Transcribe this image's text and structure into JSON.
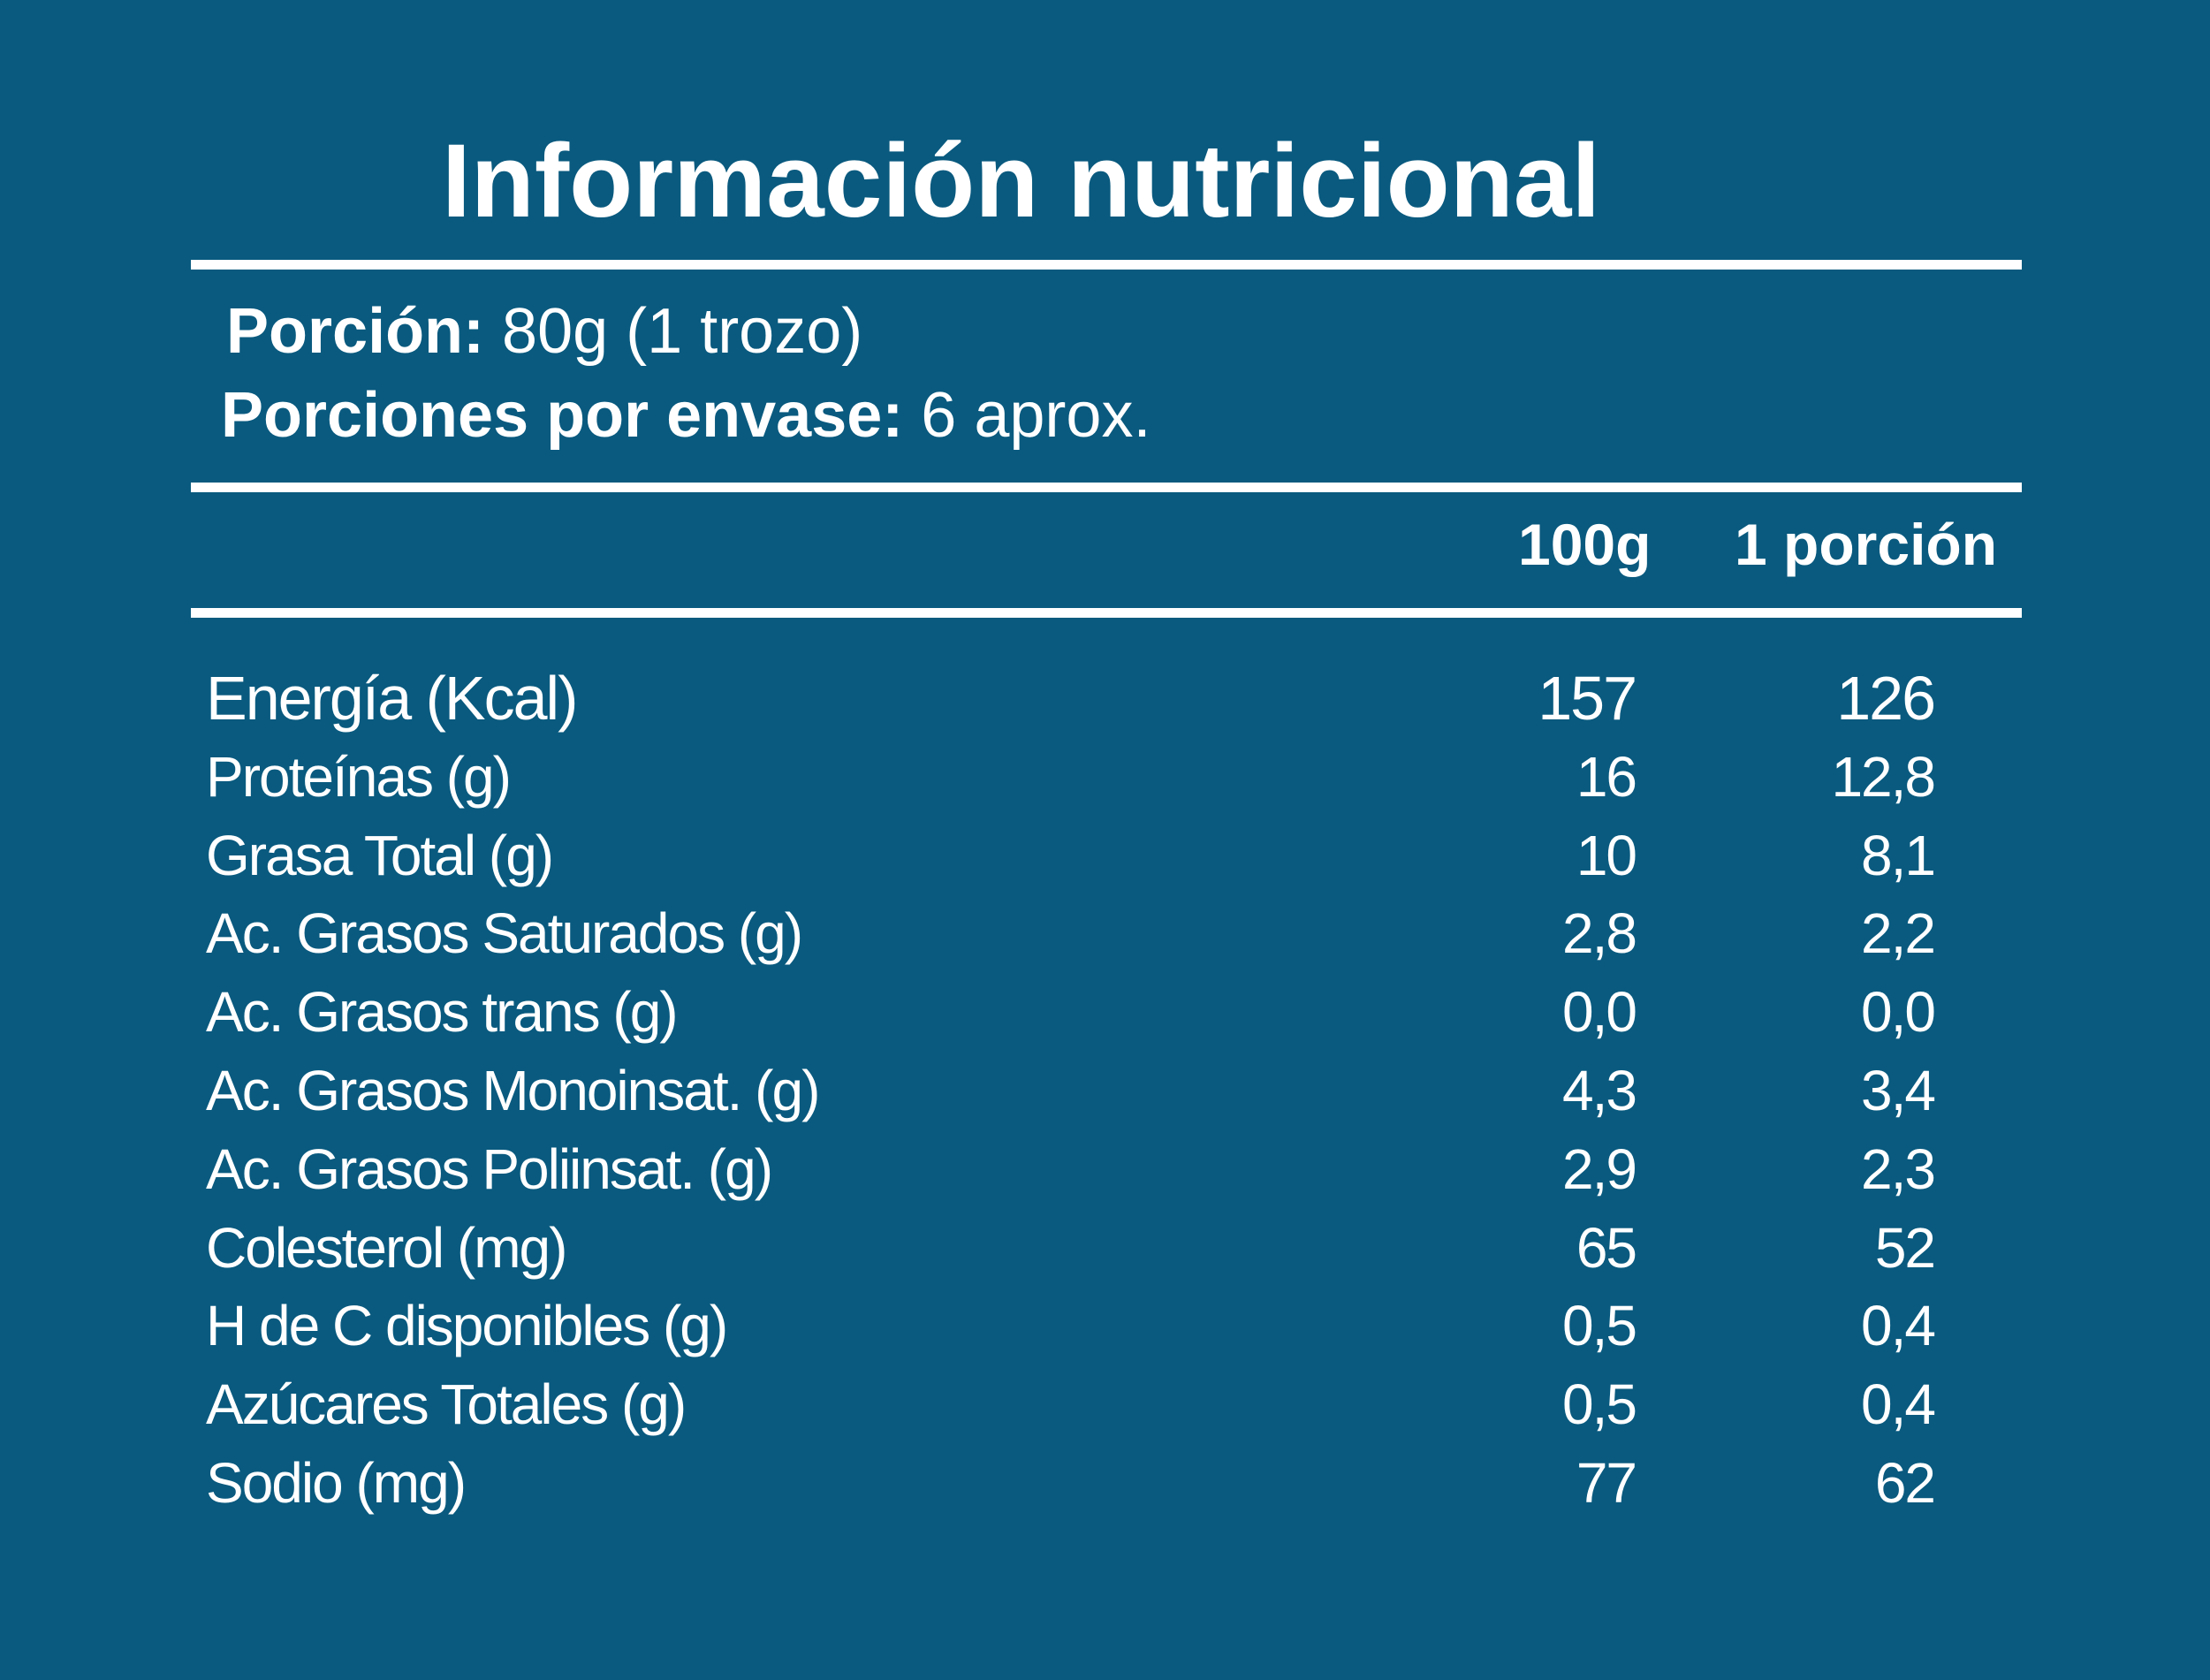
{
  "title": "Información nutricional",
  "serving": {
    "portion_label": "Porción:",
    "portion_value": "80g (1 trozo)",
    "per_package_label": "Porciones por envase:",
    "per_package_value": "6 aprox."
  },
  "columns": {
    "per_100g": "100g",
    "per_portion": "1 porción"
  },
  "nutrients": [
    {
      "name": "Energía (Kcal)",
      "per_100g": "157",
      "per_portion": "126"
    },
    {
      "name": "Proteínas (g)",
      "per_100g": "16",
      "per_portion": "12,8"
    },
    {
      "name": "Grasa Total (g)",
      "per_100g": "10",
      "per_portion": "8,1"
    },
    {
      "name": "Ac. Grasos Saturados (g)",
      "per_100g": "2,8",
      "per_portion": "2,2"
    },
    {
      "name": "Ac. Grasos trans (g)",
      "per_100g": "0,0",
      "per_portion": "0,0"
    },
    {
      "name": "Ac. Grasos Monoinsat. (g)",
      "per_100g": "4,3",
      "per_portion": "3,4"
    },
    {
      "name": "Ac. Grasos Poliinsat. (g)",
      "per_100g": "2,9",
      "per_portion": "2,3"
    },
    {
      "name": "Colesterol (mg)",
      "per_100g": "65",
      "per_portion": "52"
    },
    {
      "name": "H de C disponibles (g)",
      "per_100g": "0,5",
      "per_portion": "0,4"
    },
    {
      "name": "Azúcares Totales (g)",
      "per_100g": "0,5",
      "per_portion": "0,4"
    },
    {
      "name": "Sodio (mg)",
      "per_100g": "77",
      "per_portion": "62"
    }
  ],
  "colors": {
    "background": "#0a5a7f",
    "text": "#ffffff"
  }
}
